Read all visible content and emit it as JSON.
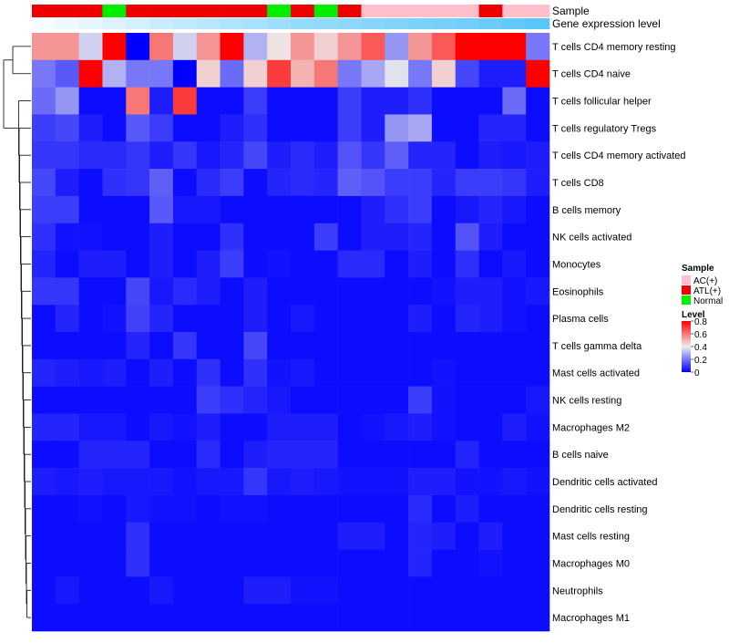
{
  "chart_data": {
    "type": "heatmap",
    "title": "",
    "annotation_titles": {
      "sample": "Sample",
      "gene_expression": "Gene expression level"
    },
    "sample_annotation": [
      "ATL(+)",
      "ATL(+)",
      "ATL(+)",
      "Normal",
      "ATL(+)",
      "ATL(+)",
      "ATL(+)",
      "ATL(+)",
      "ATL(+)",
      "ATL(+)",
      "Normal",
      "ATL(+)",
      "Normal",
      "ATL(+)",
      "AC(+)",
      "AC(+)",
      "AC(+)",
      "AC(+)",
      "AC(+)",
      "ATL(+)",
      "AC(+)",
      "AC(+)"
    ],
    "gene_expression_annotation": [
      0.05,
      0.1,
      0.15,
      0.2,
      0.25,
      0.3,
      0.35,
      0.4,
      0.45,
      0.5,
      0.55,
      0.6,
      0.62,
      0.65,
      0.7,
      0.72,
      0.75,
      0.78,
      0.8,
      0.85,
      0.9,
      0.95
    ],
    "rows": [
      "T cells CD4 memory resting",
      "T cells CD4 naive",
      "T cells follicular helper",
      "T cells regulatory  Tregs",
      "T cells CD4 memory activated",
      "T cells CD8",
      "B cells memory",
      "NK cells activated",
      "Monocytes",
      "Eosinophils",
      "Plasma cells",
      "T cells gamma delta",
      "Mast cells activated",
      "NK cells resting",
      "Macrophages M2",
      "B cells naive",
      "Dendritic cells activated",
      "Dendritic cells resting",
      "Mast cells resting",
      "Macrophages M0",
      "Neutrophils",
      "Macrophages M1"
    ],
    "values": [
      [
        0.55,
        0.55,
        0.35,
        0.8,
        0.0,
        0.6,
        0.35,
        0.55,
        0.8,
        0.3,
        0.42,
        0.55,
        0.45,
        0.55,
        0.65,
        0.25,
        0.55,
        0.65,
        0.8,
        0.8,
        0.8,
        0.2
      ],
      [
        0.2,
        0.15,
        0.8,
        0.3,
        0.2,
        0.2,
        0.0,
        0.45,
        0.18,
        0.45,
        0.7,
        0.5,
        0.6,
        0.2,
        0.28,
        0.38,
        0.2,
        0.45,
        0.12,
        0.05,
        0.05,
        0.8
      ],
      [
        0.18,
        0.25,
        0.02,
        0.02,
        0.6,
        0.05,
        0.7,
        0.02,
        0.02,
        0.1,
        0.02,
        0.02,
        0.02,
        0.1,
        0.05,
        0.05,
        0.08,
        0.02,
        0.02,
        0.02,
        0.18,
        0.02
      ],
      [
        0.1,
        0.12,
        0.05,
        0.02,
        0.15,
        0.1,
        0.02,
        0.02,
        0.05,
        0.08,
        0.02,
        0.02,
        0.02,
        0.1,
        0.05,
        0.25,
        0.28,
        0.02,
        0.02,
        0.06,
        0.06,
        0.02
      ],
      [
        0.09,
        0.09,
        0.07,
        0.07,
        0.09,
        0.05,
        0.09,
        0.04,
        0.06,
        0.12,
        0.05,
        0.07,
        0.05,
        0.14,
        0.09,
        0.16,
        0.06,
        0.06,
        0.02,
        0.05,
        0.04,
        0.05
      ],
      [
        0.12,
        0.05,
        0.02,
        0.08,
        0.09,
        0.16,
        0.02,
        0.07,
        0.1,
        0.02,
        0.06,
        0.07,
        0.06,
        0.16,
        0.14,
        0.1,
        0.1,
        0.06,
        0.1,
        0.1,
        0.09,
        0.05
      ],
      [
        0.1,
        0.1,
        0.02,
        0.02,
        0.02,
        0.15,
        0.04,
        0.04,
        0.02,
        0.02,
        0.02,
        0.02,
        0.02,
        0.02,
        0.05,
        0.08,
        0.1,
        0.02,
        0.04,
        0.06,
        0.04,
        0.02
      ],
      [
        0.08,
        0.03,
        0.03,
        0.02,
        0.02,
        0.05,
        0.02,
        0.02,
        0.08,
        0.02,
        0.02,
        0.02,
        0.1,
        0.02,
        0.05,
        0.05,
        0.06,
        0.02,
        0.14,
        0.05,
        0.02,
        0.02
      ],
      [
        0.06,
        0.02,
        0.05,
        0.05,
        0.02,
        0.05,
        0.02,
        0.05,
        0.1,
        0.02,
        0.03,
        0.02,
        0.02,
        0.07,
        0.07,
        0.02,
        0.05,
        0.02,
        0.08,
        0.02,
        0.04,
        0.02
      ],
      [
        0.09,
        0.09,
        0.02,
        0.02,
        0.12,
        0.04,
        0.07,
        0.05,
        0.02,
        0.05,
        0.02,
        0.02,
        0.02,
        0.02,
        0.02,
        0.02,
        0.02,
        0.03,
        0.05,
        0.05,
        0.03,
        0.04
      ],
      [
        0.02,
        0.06,
        0.02,
        0.03,
        0.11,
        0.06,
        0.02,
        0.02,
        0.02,
        0.05,
        0.02,
        0.04,
        0.02,
        0.02,
        0.02,
        0.02,
        0.05,
        0.02,
        0.06,
        0.05,
        0.03,
        0.02
      ],
      [
        0.02,
        0.02,
        0.02,
        0.02,
        0.06,
        0.02,
        0.09,
        0.02,
        0.02,
        0.12,
        0.02,
        0.02,
        0.02,
        0.02,
        0.02,
        0.02,
        0.02,
        0.02,
        0.02,
        0.02,
        0.02,
        0.02
      ],
      [
        0.06,
        0.05,
        0.04,
        0.05,
        0.02,
        0.05,
        0.02,
        0.08,
        0.02,
        0.08,
        0.03,
        0.04,
        0.02,
        0.02,
        0.02,
        0.02,
        0.02,
        0.03,
        0.02,
        0.02,
        0.02,
        0.02
      ],
      [
        0.02,
        0.02,
        0.02,
        0.02,
        0.02,
        0.02,
        0.02,
        0.1,
        0.08,
        0.06,
        0.04,
        0.02,
        0.02,
        0.02,
        0.02,
        0.02,
        0.1,
        0.03,
        0.02,
        0.02,
        0.02,
        0.04
      ],
      [
        0.06,
        0.06,
        0.04,
        0.04,
        0.02,
        0.04,
        0.03,
        0.05,
        0.02,
        0.02,
        0.05,
        0.05,
        0.05,
        0.02,
        0.03,
        0.04,
        0.05,
        0.03,
        0.02,
        0.02,
        0.05,
        0.03
      ],
      [
        0.02,
        0.02,
        0.06,
        0.06,
        0.06,
        0.02,
        0.02,
        0.07,
        0.02,
        0.05,
        0.06,
        0.06,
        0.06,
        0.02,
        0.02,
        0.02,
        0.02,
        0.02,
        0.06,
        0.02,
        0.02,
        0.02
      ],
      [
        0.05,
        0.04,
        0.05,
        0.04,
        0.04,
        0.04,
        0.03,
        0.04,
        0.04,
        0.09,
        0.04,
        0.05,
        0.04,
        0.03,
        0.03,
        0.03,
        0.05,
        0.05,
        0.03,
        0.03,
        0.04,
        0.03
      ],
      [
        0.02,
        0.02,
        0.03,
        0.02,
        0.04,
        0.03,
        0.03,
        0.02,
        0.03,
        0.03,
        0.02,
        0.02,
        0.02,
        0.02,
        0.02,
        0.02,
        0.07,
        0.02,
        0.05,
        0.02,
        0.02,
        0.02
      ],
      [
        0.02,
        0.02,
        0.02,
        0.02,
        0.08,
        0.02,
        0.02,
        0.02,
        0.02,
        0.02,
        0.02,
        0.02,
        0.02,
        0.05,
        0.05,
        0.02,
        0.06,
        0.05,
        0.02,
        0.05,
        0.02,
        0.02
      ],
      [
        0.02,
        0.02,
        0.02,
        0.02,
        0.08,
        0.02,
        0.02,
        0.02,
        0.02,
        0.02,
        0.02,
        0.02,
        0.02,
        0.02,
        0.02,
        0.02,
        0.06,
        0.02,
        0.02,
        0.03,
        0.02,
        0.02
      ],
      [
        0.02,
        0.04,
        0.02,
        0.02,
        0.02,
        0.04,
        0.02,
        0.02,
        0.02,
        0.05,
        0.05,
        0.03,
        0.03,
        0.02,
        0.02,
        0.02,
        0.02,
        0.02,
        0.02,
        0.02,
        0.02,
        0.02
      ],
      [
        0.02,
        0.02,
        0.02,
        0.02,
        0.02,
        0.02,
        0.02,
        0.02,
        0.02,
        0.02,
        0.02,
        0.02,
        0.02,
        0.02,
        0.02,
        0.02,
        0.02,
        0.02,
        0.02,
        0.02,
        0.02,
        0.02
      ]
    ],
    "legend_sample": {
      "title": "Sample",
      "entries": [
        {
          "label": "AC(+)",
          "color": "#FFC0CB"
        },
        {
          "label": "ATL(+)",
          "color": "#EE0000"
        },
        {
          "label": "Normal",
          "color": "#00EE00"
        }
      ]
    },
    "legend_level": {
      "title": "Level",
      "ticks": [
        "0.8",
        "0.6",
        "0.4",
        "0.2",
        "0"
      ],
      "tick_values": [
        0.8,
        0.6,
        0.4,
        0.2,
        0
      ],
      "range": [
        0,
        0.8
      ]
    },
    "colorscale": {
      "low": "#0000FF",
      "mid": "#EEEEEE",
      "high": "#FF0000",
      "midpoint": 0.4
    },
    "gene_expression_colors": {
      "low": "#FFFFFF",
      "high": "#4FC3F7"
    },
    "dendrogram": "row dendrogram on left"
  }
}
